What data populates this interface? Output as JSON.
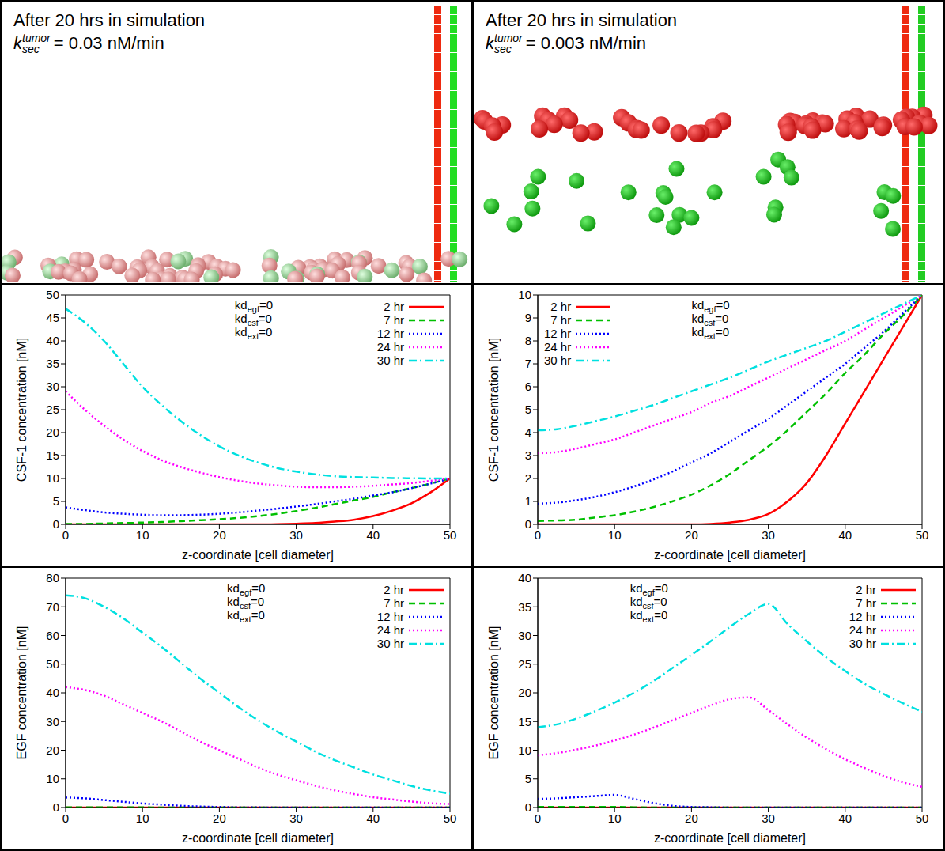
{
  "panels": [
    {
      "title": "After 20 hrs in simulation",
      "rate": {
        "symbol": "k",
        "superscript": "tumor",
        "subscript": "sec",
        "text": "= 0.03 nM/min"
      }
    },
    {
      "title": "After 20 hrs in simulation",
      "rate": {
        "symbol": "k",
        "superscript": "tumor",
        "subscript": "sec",
        "text": "= 0.003 nM/min"
      }
    }
  ],
  "chart_data": [
    {
      "type": "line",
      "xlabel": "z-coordinate [cell diameter]",
      "ylabel": "CSF-1 concentration [nM]",
      "x": [
        0,
        2.5,
        5,
        7.5,
        10,
        12.5,
        15,
        17.5,
        20,
        22.5,
        25,
        27.5,
        30,
        32.5,
        35,
        37.5,
        40,
        42.5,
        45,
        47.5,
        50
      ],
      "xlim": [
        0,
        50
      ],
      "xticks": [
        0,
        10,
        20,
        30,
        40,
        50
      ],
      "ylim": [
        0,
        50
      ],
      "yticks": [
        0,
        5,
        10,
        15,
        20,
        25,
        30,
        35,
        40,
        45,
        50
      ],
      "grid": false,
      "legend": "upper right",
      "annotations": [
        {
          "text": "kd",
          "subscript": "egf",
          "after": "=0"
        },
        {
          "text": "kd",
          "subscript": "csf",
          "after": "=0"
        },
        {
          "text": "kd",
          "subscript": "ext",
          "after": "=0"
        }
      ],
      "series": [
        {
          "name": "2 hr",
          "color": "#ff0000",
          "line_style": "solid",
          "values": [
            0,
            0,
            0,
            0,
            0,
            0,
            0,
            0,
            0,
            0,
            0,
            0.05,
            0.15,
            0.3,
            0.6,
            1.0,
            1.8,
            3.0,
            4.6,
            7.0,
            10
          ]
        },
        {
          "name": "7 hr",
          "color": "#00c000",
          "line_style": "dashed",
          "values": [
            0.1,
            0.1,
            0.2,
            0.3,
            0.4,
            0.5,
            0.7,
            0.9,
            1.1,
            1.4,
            1.8,
            2.3,
            2.9,
            3.6,
            4.4,
            5.2,
            6.0,
            7.0,
            7.9,
            8.9,
            10
          ]
        },
        {
          "name": "12 hr",
          "color": "#0000ff",
          "line_style": "dotted",
          "values": [
            3.7,
            3.1,
            2.6,
            2.3,
            2.1,
            2.0,
            2.0,
            2.1,
            2.3,
            2.6,
            3.0,
            3.4,
            3.9,
            4.4,
            5.0,
            5.6,
            6.3,
            7.0,
            7.9,
            8.9,
            10
          ]
        },
        {
          "name": "24 hr",
          "color": "#ff00ff",
          "line_style": "dotted",
          "values": [
            29,
            25,
            21.5,
            18.5,
            16,
            14,
            12.5,
            11.3,
            10.3,
            9.5,
            8.9,
            8.5,
            8.2,
            8.1,
            8.1,
            8.2,
            8.4,
            8.7,
            9.0,
            9.5,
            10
          ]
        },
        {
          "name": "30 hr",
          "color": "#00e0e0",
          "line_style": "dashdot",
          "values": [
            47,
            44,
            40,
            35,
            30,
            26,
            22.5,
            19.5,
            17,
            15,
            13.5,
            12.3,
            11.5,
            10.9,
            10.5,
            10.3,
            10.2,
            10.1,
            10.05,
            10,
            10
          ]
        }
      ]
    },
    {
      "type": "line",
      "xlabel": "z-coordinate [cell diameter]",
      "ylabel": "CSF-1 concentration [nM]",
      "x": [
        0,
        2.5,
        5,
        7.5,
        10,
        12.5,
        15,
        17.5,
        20,
        22.5,
        25,
        27.5,
        30,
        32.5,
        35,
        37.5,
        40,
        42.5,
        45,
        47.5,
        50
      ],
      "xlim": [
        0,
        50
      ],
      "xticks": [
        0,
        10,
        20,
        30,
        40,
        50
      ],
      "ylim": [
        0,
        10
      ],
      "yticks": [
        0,
        1,
        2,
        3,
        4,
        5,
        6,
        7,
        8,
        9,
        10
      ],
      "grid": false,
      "legend": "upper left",
      "annotations": [
        {
          "text": "kd",
          "subscript": "egf",
          "after": "=0"
        },
        {
          "text": "kd",
          "subscript": "csf",
          "after": "=0"
        },
        {
          "text": "kd",
          "subscript": "ext",
          "after": "=0"
        }
      ],
      "series": [
        {
          "name": "2 hr",
          "color": "#ff0000",
          "line_style": "solid",
          "values": [
            0,
            0,
            0,
            0,
            0,
            0,
            0,
            0,
            0,
            0.02,
            0.08,
            0.2,
            0.45,
            1.0,
            1.8,
            3.0,
            4.4,
            5.8,
            7.2,
            8.6,
            10
          ]
        },
        {
          "name": "7 hr",
          "color": "#00c000",
          "line_style": "dashed",
          "values": [
            0.15,
            0.17,
            0.2,
            0.3,
            0.4,
            0.55,
            0.75,
            1.0,
            1.3,
            1.7,
            2.2,
            2.8,
            3.4,
            4.1,
            4.9,
            5.7,
            6.6,
            7.4,
            8.3,
            9.1,
            10
          ]
        },
        {
          "name": "12 hr",
          "color": "#0000ff",
          "line_style": "dotted",
          "values": [
            0.9,
            0.95,
            1.05,
            1.2,
            1.4,
            1.65,
            1.95,
            2.3,
            2.7,
            3.1,
            3.6,
            4.1,
            4.6,
            5.2,
            5.8,
            6.4,
            7.0,
            7.7,
            8.4,
            9.2,
            10
          ]
        },
        {
          "name": "24 hr",
          "color": "#ff00ff",
          "line_style": "dotted",
          "values": [
            3.1,
            3.15,
            3.3,
            3.5,
            3.7,
            4.0,
            4.3,
            4.6,
            4.9,
            5.3,
            5.6,
            6.0,
            6.4,
            6.8,
            7.2,
            7.6,
            8.0,
            8.5,
            9.0,
            9.5,
            10
          ]
        },
        {
          "name": "30 hr",
          "color": "#00e0e0",
          "line_style": "dashdot",
          "values": [
            4.1,
            4.15,
            4.3,
            4.5,
            4.7,
            4.95,
            5.2,
            5.5,
            5.8,
            6.1,
            6.4,
            6.75,
            7.1,
            7.4,
            7.7,
            8.0,
            8.4,
            8.8,
            9.2,
            9.6,
            10
          ]
        }
      ]
    },
    {
      "type": "line",
      "xlabel": "z-coordinate [cell diameter]",
      "ylabel": "EGF concentration [nM]",
      "x": [
        0,
        2.5,
        5,
        7.5,
        10,
        12.5,
        15,
        17.5,
        20,
        22.5,
        25,
        27.5,
        30,
        32.5,
        35,
        37.5,
        40,
        42.5,
        45,
        47.5,
        50
      ],
      "xlim": [
        0,
        50
      ],
      "xticks": [
        0,
        10,
        20,
        30,
        40,
        50
      ],
      "ylim": [
        0,
        80
      ],
      "yticks": [
        0,
        10,
        20,
        30,
        40,
        50,
        60,
        70,
        80
      ],
      "grid": false,
      "legend": "upper right",
      "annotations": [
        {
          "text": "kd",
          "subscript": "egf",
          "after": "=0"
        },
        {
          "text": "kd",
          "subscript": "csf",
          "after": "=0"
        },
        {
          "text": "kd",
          "subscript": "ext",
          "after": "=0"
        }
      ],
      "series": [
        {
          "name": "2 hr",
          "color": "#ff0000",
          "line_style": "solid",
          "values": [
            0,
            0,
            0,
            0,
            0,
            0,
            0,
            0,
            0,
            0,
            0,
            0,
            0,
            0,
            0,
            0,
            0,
            0,
            0,
            0,
            0
          ]
        },
        {
          "name": "7 hr",
          "color": "#00c000",
          "line_style": "dashed",
          "values": [
            0.1,
            0.1,
            0.1,
            0.05,
            0.05,
            0,
            0,
            0,
            0,
            0,
            0,
            0,
            0,
            0,
            0,
            0,
            0,
            0,
            0,
            0,
            0
          ]
        },
        {
          "name": "12 hr",
          "color": "#0000ff",
          "line_style": "dotted",
          "values": [
            3.5,
            3.2,
            2.6,
            2.0,
            1.4,
            1.0,
            0.6,
            0.35,
            0.2,
            0.1,
            0.05,
            0,
            0,
            0,
            0,
            0,
            0,
            0,
            0,
            0,
            0
          ]
        },
        {
          "name": "24 hr",
          "color": "#ff00ff",
          "line_style": "dotted",
          "values": [
            42,
            41,
            39,
            36,
            33,
            30,
            26.5,
            23,
            20,
            17,
            14,
            11.5,
            9.5,
            7.6,
            6,
            4.7,
            3.6,
            2.8,
            2.1,
            1.5,
            1.2
          ]
        },
        {
          "name": "30 hr",
          "color": "#00e0e0",
          "line_style": "dashdot",
          "values": [
            74,
            73,
            70,
            66,
            61,
            56,
            50.5,
            45,
            40,
            35,
            30.5,
            26.5,
            23,
            19.5,
            16.5,
            14,
            11.5,
            9.5,
            7.5,
            6,
            4.8
          ]
        }
      ]
    },
    {
      "type": "line",
      "xlabel": "z-coordinate [cell diameter]",
      "ylabel": "EGF concentration [nM]",
      "x": [
        0,
        2.5,
        5,
        7.5,
        10,
        12.5,
        15,
        17.5,
        20,
        22.5,
        25,
        27.5,
        30,
        32.5,
        35,
        37.5,
        40,
        42.5,
        45,
        47.5,
        50
      ],
      "xlim": [
        0,
        50
      ],
      "xticks": [
        0,
        10,
        20,
        30,
        40,
        50
      ],
      "ylim": [
        0,
        40
      ],
      "yticks": [
        0,
        5,
        10,
        15,
        20,
        25,
        30,
        35,
        40
      ],
      "grid": false,
      "legend": "upper right",
      "annotations": [
        {
          "text": "kd",
          "subscript": "egf",
          "after": "=0"
        },
        {
          "text": "kd",
          "subscript": "csf",
          "after": "=0"
        },
        {
          "text": "kd",
          "subscript": "ext",
          "after": "=0"
        }
      ],
      "series": [
        {
          "name": "2 hr",
          "color": "#ff0000",
          "line_style": "solid",
          "values": [
            0,
            0,
            0,
            0,
            0,
            0,
            0,
            0,
            0,
            0,
            0,
            0,
            0,
            0,
            0,
            0,
            0,
            0,
            0,
            0,
            0
          ]
        },
        {
          "name": "7 hr",
          "color": "#00c000",
          "line_style": "dashed",
          "values": [
            0.1,
            0.1,
            0.1,
            0.1,
            0.1,
            0.05,
            0,
            0,
            0,
            0,
            0,
            0,
            0,
            0,
            0,
            0,
            0,
            0,
            0,
            0,
            0
          ]
        },
        {
          "name": "12 hr",
          "color": "#0000ff",
          "line_style": "dotted",
          "values": [
            1.5,
            1.6,
            1.8,
            2.0,
            2.2,
            1.5,
            0.8,
            0.3,
            0.1,
            0.05,
            0,
            0,
            0,
            0,
            0,
            0,
            0,
            0,
            0,
            0,
            0
          ]
        },
        {
          "name": "24 hr",
          "color": "#ff00ff",
          "line_style": "dotted",
          "values": [
            9.1,
            9.5,
            10.1,
            10.8,
            11.7,
            12.7,
            13.9,
            15.2,
            16.5,
            17.8,
            18.9,
            19.2,
            17,
            14.5,
            12.2,
            10.2,
            8.4,
            6.9,
            5.5,
            4.4,
            3.6
          ]
        },
        {
          "name": "30 hr",
          "color": "#00e0e0",
          "line_style": "dashdot",
          "values": [
            14,
            14.5,
            15.5,
            16.8,
            18.3,
            20,
            22,
            24.3,
            26.6,
            29,
            31.5,
            33.8,
            35.5,
            32,
            29,
            26.2,
            23.8,
            21.6,
            19.8,
            18.2,
            16.7
          ]
        }
      ]
    }
  ]
}
